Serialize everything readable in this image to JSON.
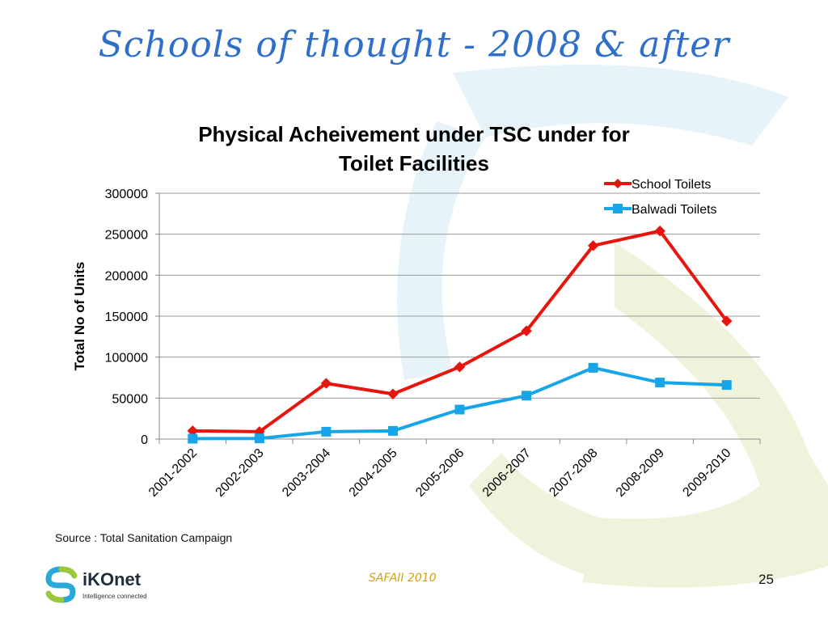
{
  "slide": {
    "title": "Schools of thought - 2008 & after",
    "source": "Source : Total Sanitation Campaign",
    "footer_center": "SAFAII 2010",
    "page_number": "25",
    "logo_name": "iKOnet",
    "logo_tagline": "Intelligence connected"
  },
  "colors": {
    "school": "#e8150e",
    "balwadi": "#16a6e8",
    "title": "#2f6fc9",
    "background_arrow_green": "#f0f3dc",
    "background_arrow_blue": "#e6f4fa"
  },
  "chart_data": {
    "type": "line",
    "title": "Physical Acheivement under TSC under for Toilet Facilities",
    "title_lines": [
      "Physical Acheivement under TSC under for",
      "Toilet Facilities"
    ],
    "xlabel": "",
    "ylabel": "Total No of Units",
    "categories": [
      "2001-2002",
      "2002-2003",
      "2003-2004",
      "2004-2005",
      "2005-2006",
      "2006-2007",
      "2007-2008",
      "2008-2009",
      "2009-2010"
    ],
    "ylim": [
      0,
      300000
    ],
    "yticks": [
      0,
      50000,
      100000,
      150000,
      200000,
      250000,
      300000
    ],
    "grid": true,
    "legend_position": "top-right",
    "series": [
      {
        "name": "School Toilets",
        "marker": "diamond",
        "color": "#e8150e",
        "values": [
          10000,
          9000,
          68000,
          55000,
          88000,
          132000,
          236000,
          254000,
          144000
        ]
      },
      {
        "name": "Balwadi Toilets",
        "marker": "square",
        "color": "#16a6e8",
        "values": [
          500,
          800,
          9000,
          10000,
          36000,
          53000,
          87000,
          69000,
          66000
        ]
      }
    ]
  }
}
